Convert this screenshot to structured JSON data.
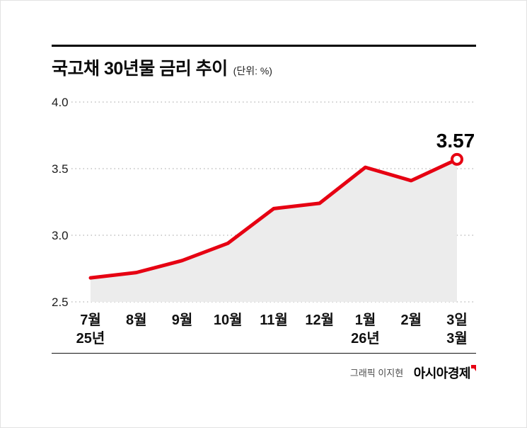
{
  "title": {
    "text": "국고채 30년물 금리 추이",
    "unit": "(단위: %)"
  },
  "credit": {
    "graphic": "그래픽 이지현",
    "brand": "아시아경제"
  },
  "chart_data": {
    "type": "line",
    "title": "국고채 30년물 금리 추이",
    "unit": "%",
    "x": [
      "7월",
      "8월",
      "9월",
      "10월",
      "11월",
      "12월",
      "1월",
      "2월",
      "3일"
    ],
    "x_sub_labels": [
      {
        "index": 0,
        "label": "25년"
      },
      {
        "index": 6,
        "label": "26년"
      },
      {
        "index": 8,
        "label": "3월"
      }
    ],
    "series": [
      {
        "name": "국고채 30년물 금리",
        "values": [
          2.68,
          2.72,
          2.81,
          2.94,
          3.2,
          3.24,
          3.51,
          3.41,
          3.57
        ]
      }
    ],
    "ylim": [
      2.5,
      4.0
    ],
    "yticks": [
      4.0,
      3.5,
      3.0,
      2.5
    ],
    "last_value_label": "3.57",
    "line_color": "#e60012",
    "fill_color": "#ececec",
    "grid_color": "#b3b3b3",
    "grid": "dotted",
    "legend": "none"
  }
}
